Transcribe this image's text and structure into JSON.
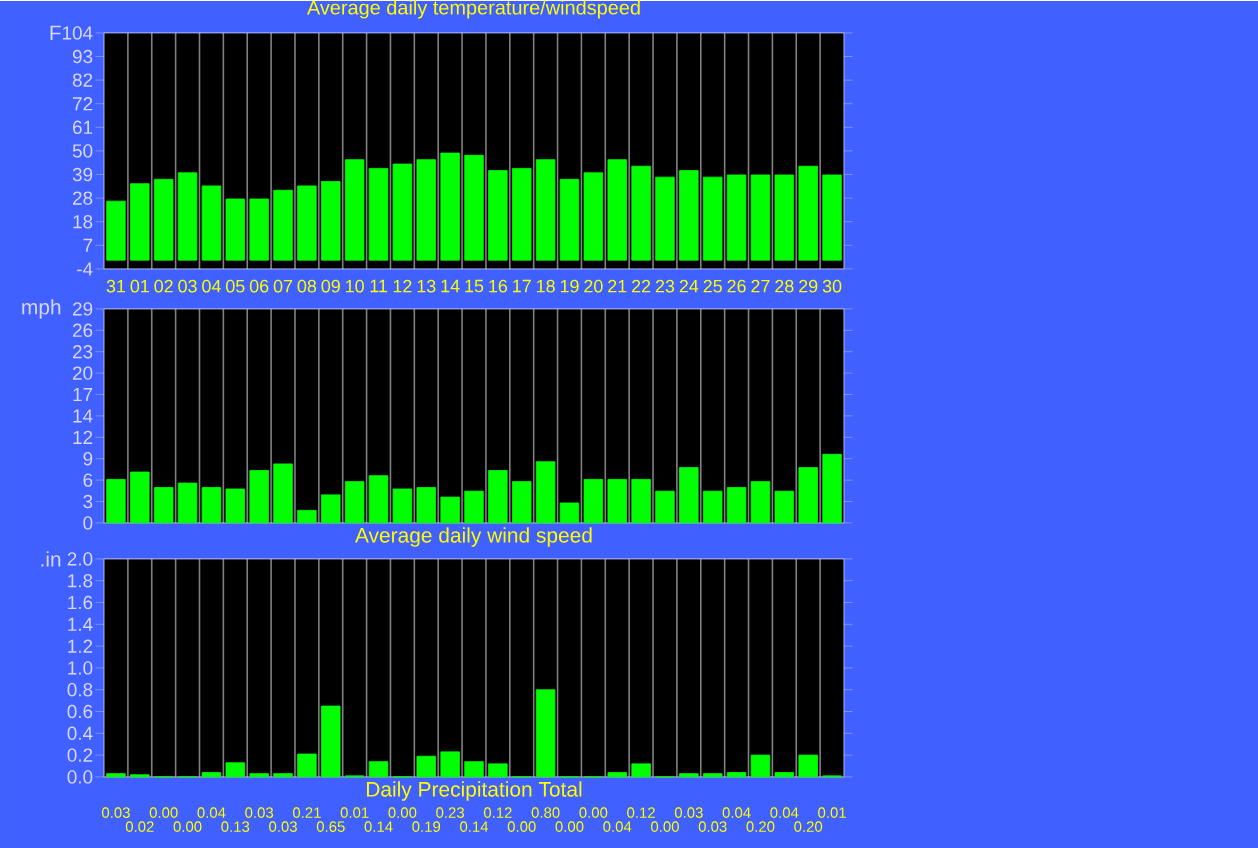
{
  "chart_data": [
    {
      "type": "bar",
      "title": "Average daily temperature/windspeed",
      "ylabel": "F",
      "color": "#00ff00",
      "grid": "x",
      "categories": [
        "31",
        "01",
        "02",
        "03",
        "04",
        "05",
        "06",
        "07",
        "08",
        "09",
        "10",
        "11",
        "12",
        "13",
        "14",
        "15",
        "16",
        "17",
        "18",
        "19",
        "20",
        "21",
        "22",
        "23",
        "24",
        "25",
        "26",
        "27",
        "28",
        "29",
        "30"
      ],
      "values": [
        27,
        35,
        37,
        40,
        34,
        28,
        28,
        32,
        34,
        36,
        46,
        42,
        44,
        46,
        49,
        48,
        41,
        42,
        46,
        37,
        40,
        46,
        43,
        38,
        41,
        38,
        39,
        39,
        39,
        43,
        39
      ],
      "ylim": [
        -4,
        104
      ],
      "yticks": [
        {
          "value": -4,
          "label": "-4"
        },
        {
          "value": 6.8,
          "label": "7"
        },
        {
          "value": 17.6,
          "label": "18"
        },
        {
          "value": 28.4,
          "label": "28"
        },
        {
          "value": 39.2,
          "label": "39"
        },
        {
          "value": 50,
          "label": "50"
        },
        {
          "value": 60.8,
          "label": "61"
        },
        {
          "value": 71.6,
          "label": "72"
        },
        {
          "value": 82.4,
          "label": "82"
        },
        {
          "value": 93.2,
          "label": "93"
        },
        {
          "value": 104,
          "label": "104"
        }
      ]
    },
    {
      "type": "bar",
      "xlabel": "Average daily wind speed",
      "ylabel": "mph",
      "color": "#00ff00",
      "grid": "x",
      "tick_labels": "y",
      "categories": [
        null,
        null,
        null,
        null,
        null,
        null,
        null,
        null,
        null,
        null,
        null,
        null,
        null,
        null,
        null,
        null,
        null,
        null,
        null,
        null,
        null,
        null,
        null,
        null,
        null,
        null,
        null,
        null,
        null,
        null,
        null
      ],
      "values": [
        5.9,
        6.9,
        4.8,
        5.4,
        4.8,
        4.6,
        7.1,
        8.0,
        1.7,
        3.8,
        5.6,
        6.4,
        4.6,
        4.8,
        3.5,
        4.3,
        7.1,
        5.6,
        8.3,
        2.7,
        5.9,
        5.9,
        5.9,
        4.3,
        7.5,
        4.3,
        4.8,
        5.6,
        4.3,
        7.5,
        9.3
      ],
      "ylim": [
        0,
        29
      ],
      "yticks": [
        {
          "value": 0,
          "label": "0"
        },
        {
          "value": 2.9,
          "label": "3"
        },
        {
          "value": 5.8,
          "label": "6"
        },
        {
          "value": 8.7,
          "label": "9"
        },
        {
          "value": 11.6,
          "label": "12"
        },
        {
          "value": 14.5,
          "label": "14"
        },
        {
          "value": 17.4,
          "label": "17"
        },
        {
          "value": 20.3,
          "label": "20"
        },
        {
          "value": 23.2,
          "label": "23"
        },
        {
          "value": 26.1,
          "label": "26"
        },
        {
          "value": 29,
          "label": "29"
        }
      ]
    },
    {
      "type": "bar",
      "xlabel": "Daily Precipitation Total",
      "ylabel": ".in",
      "color": "#00ff00",
      "grid": "x",
      "tick_labels": "y",
      "categories": [
        null,
        null,
        null,
        null,
        null,
        null,
        null,
        null,
        null,
        null,
        null,
        null,
        null,
        null,
        null,
        null,
        null,
        null,
        null,
        null,
        null,
        null,
        null,
        null,
        null,
        null,
        null,
        null,
        null,
        null,
        null
      ],
      "values": [
        0.03,
        0.02,
        0.0,
        0.0,
        0.04,
        0.13,
        0.03,
        0.03,
        0.21,
        0.65,
        0.01,
        0.14,
        0.0,
        0.19,
        0.23,
        0.14,
        0.12,
        0.0,
        0.8,
        0.0,
        0.0,
        0.04,
        0.12,
        0.0,
        0.03,
        0.03,
        0.04,
        0.2,
        0.04,
        0.2,
        0.01
      ],
      "value_labels": [
        "0.03",
        "0.02",
        "0.00",
        "0.00",
        "0.04",
        "0.13",
        "0.03",
        "0.03",
        "0.21",
        "0.65",
        "0.01",
        "0.14",
        "0.00",
        "0.19",
        "0.23",
        "0.14",
        "0.12",
        "0.00",
        "0.80",
        "0.00",
        "0.00",
        "0.04",
        "0.12",
        "0.00",
        "0.03",
        "0.03",
        "0.04",
        "0.20",
        "0.04",
        "0.20",
        "0.01"
      ],
      "ylim": [
        0,
        2.0
      ],
      "yticks": [
        {
          "value": 0,
          "label": "0.0"
        },
        {
          "value": 0.2,
          "label": "0.2"
        },
        {
          "value": 0.4,
          "label": "0.4"
        },
        {
          "value": 0.6,
          "label": "0.6"
        },
        {
          "value": 0.8,
          "label": "0.8"
        },
        {
          "value": 1.0,
          "label": "1.0"
        },
        {
          "value": 1.2,
          "label": "1.2"
        },
        {
          "value": 1.4,
          "label": "1.4"
        },
        {
          "value": 1.6,
          "label": "1.6"
        },
        {
          "value": 1.8,
          "label": "1.8"
        },
        {
          "value": 2.0,
          "label": "2.0"
        }
      ]
    }
  ]
}
